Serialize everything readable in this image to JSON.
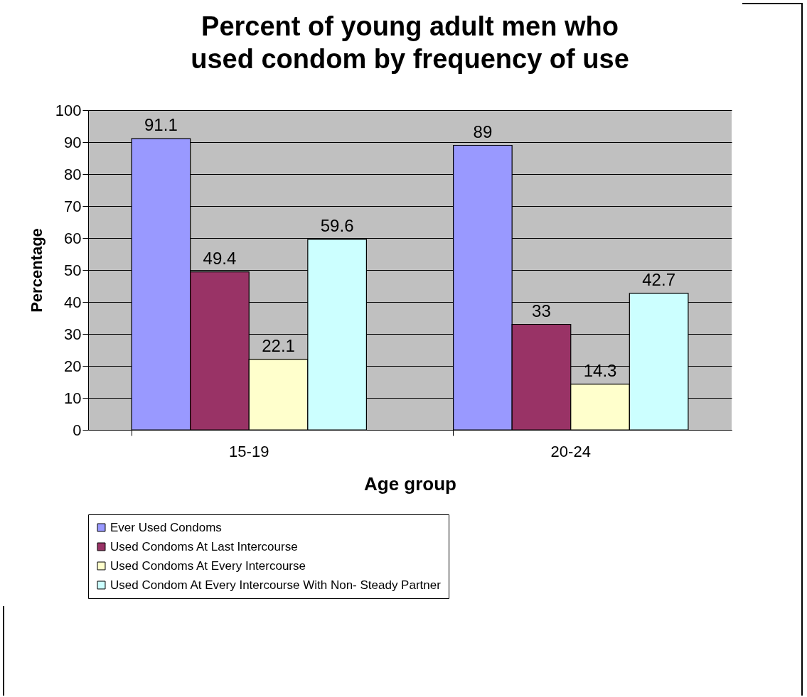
{
  "chart_data": {
    "type": "bar",
    "title": "Percent of young adult men who used condom by frequency of use",
    "xlabel": "Age group",
    "ylabel": "Percentage",
    "categories": [
      "15-19",
      "20-24"
    ],
    "series": [
      {
        "name": "Ever Used Condoms",
        "color": "#9999ff",
        "values": [
          91.1,
          89
        ]
      },
      {
        "name": "Used Condoms At Last Intercourse",
        "color": "#993366",
        "values": [
          49.4,
          33
        ]
      },
      {
        "name": "Used Condoms At Every Intercourse",
        "color": "#ffffcc",
        "values": [
          22.1,
          14.3
        ]
      },
      {
        "name": "Used Condom At Every Intercourse With Non- Steady Partner",
        "color": "#ccffff",
        "values": [
          59.6,
          42.7
        ]
      }
    ],
    "ylim": [
      0,
      100
    ],
    "yticks": [
      0,
      10,
      20,
      30,
      40,
      50,
      60,
      70,
      80,
      90,
      100
    ],
    "grid": "y",
    "legend": "bottom",
    "data_labels": true
  }
}
